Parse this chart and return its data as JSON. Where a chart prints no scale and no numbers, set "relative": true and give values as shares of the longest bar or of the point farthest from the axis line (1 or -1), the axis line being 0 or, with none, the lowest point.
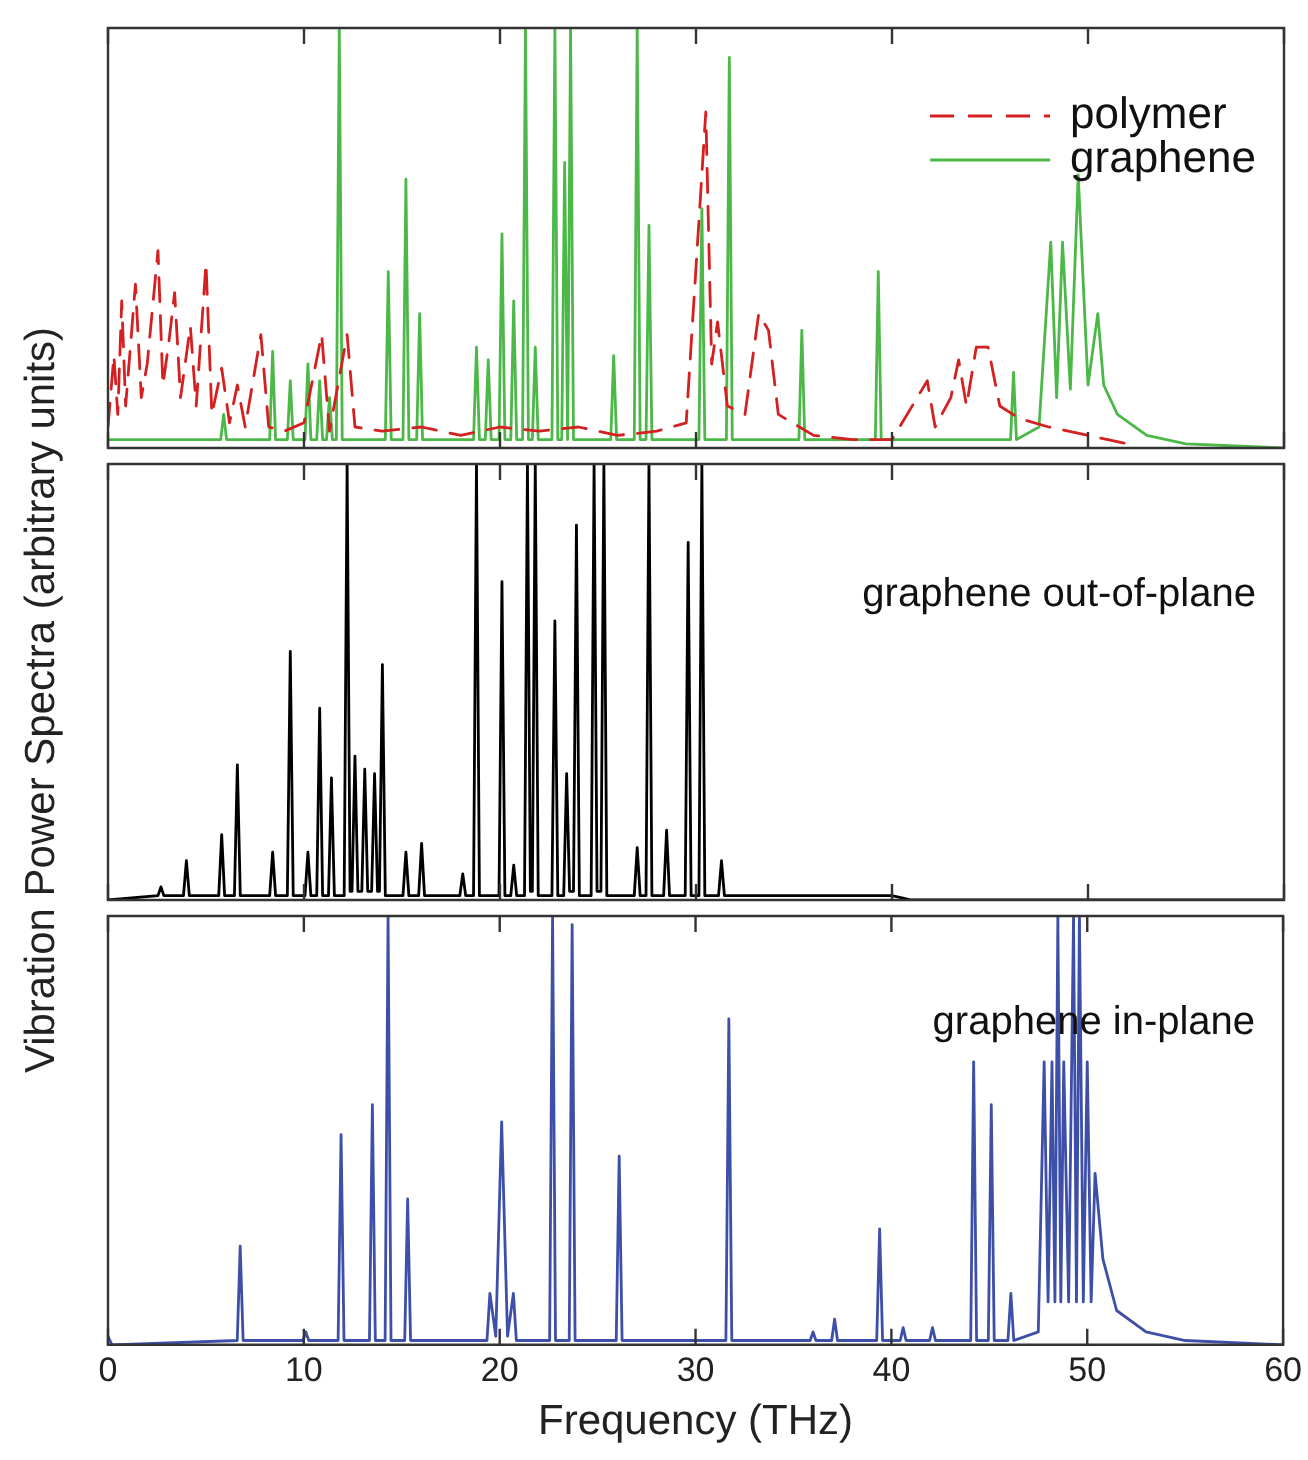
{
  "chart_data": [
    {
      "type": "line",
      "relative": true,
      "xlim": [
        0,
        60
      ],
      "xticks": [
        0,
        10,
        20,
        30,
        40,
        50,
        60
      ],
      "tick_labels": false,
      "legend": "top right",
      "series": [
        {
          "name": "polymer",
          "color": "#d42020",
          "line_style": "dashed",
          "x": [
            0,
            0.3,
            0.5,
            0.7,
            0.9,
            1.4,
            1.7,
            2.0,
            2.55,
            2.8,
            3.1,
            3.4,
            3.7,
            4.2,
            4.5,
            5.0,
            5.3,
            5.8,
            6.2,
            6.6,
            7.0,
            7.8,
            8.2,
            9,
            10,
            10.9,
            11.3,
            12.2,
            12.6,
            14,
            16,
            18,
            20,
            22,
            24,
            26,
            28,
            29.5,
            30.5,
            30.8,
            31.1,
            31.6,
            32.5,
            33.2,
            33.7,
            34.2,
            36,
            38,
            40,
            41.8,
            42.2,
            43,
            43.4,
            43.8,
            44.3,
            44.9,
            45.5,
            46.5,
            48,
            50,
            52
          ],
          "values": [
            0.05,
            0.22,
            0.08,
            0.35,
            0.1,
            0.39,
            0.12,
            0.2,
            0.47,
            0.15,
            0.25,
            0.37,
            0.12,
            0.29,
            0.1,
            0.44,
            0.08,
            0.19,
            0.06,
            0.15,
            0.05,
            0.27,
            0.05,
            0.04,
            0.06,
            0.27,
            0.04,
            0.27,
            0.05,
            0.04,
            0.05,
            0.03,
            0.05,
            0.04,
            0.05,
            0.03,
            0.04,
            0.06,
            0.8,
            0.2,
            0.3,
            0.1,
            0.08,
            0.32,
            0.28,
            0.08,
            0.03,
            0.02,
            0.02,
            0.16,
            0.05,
            0.12,
            0.21,
            0.1,
            0.24,
            0.24,
            0.1,
            0.07,
            0.05,
            0.03,
            0.01
          ]
        },
        {
          "name": "graphene",
          "color": "#4cb848",
          "line_style": "solid",
          "x": [
            0,
            5.75,
            5.9,
            6.05,
            8.25,
            8.4,
            8.55,
            9.15,
            9.3,
            9.45,
            10.05,
            10.2,
            10.35,
            10.65,
            10.8,
            10.95,
            11.15,
            11.3,
            11.45,
            11.65,
            11.8,
            11.95,
            14.15,
            14.3,
            14.45,
            15.05,
            15.2,
            15.35,
            15.75,
            15.9,
            16.05,
            18.65,
            18.8,
            18.95,
            19.25,
            19.4,
            19.55,
            19.95,
            20.1,
            20.25,
            20.55,
            20.7,
            20.85,
            21.15,
            21.3,
            21.45,
            21.65,
            21.8,
            21.95,
            22.65,
            22.8,
            22.95,
            23.15,
            23.3,
            23.45,
            23.6,
            23.75,
            25.65,
            25.8,
            25.95,
            26.85,
            27.0,
            27.15,
            27.45,
            27.6,
            27.75,
            30.15,
            30.3,
            30.45,
            31.55,
            31.7,
            31.85,
            35.25,
            35.4,
            35.55,
            39.15,
            39.3,
            39.45,
            46.05,
            46.2,
            46.35,
            47.5,
            48.1,
            48.4,
            48.7,
            49.1,
            49.5,
            50.0,
            50.5,
            50.8,
            51.5,
            53,
            55,
            60
          ],
          "values": [
            0.02,
            0.02,
            0.08,
            0.02,
            0.02,
            0.23,
            0.02,
            0.02,
            0.16,
            0.02,
            0.02,
            0.2,
            0.02,
            0.02,
            0.16,
            0.02,
            0.02,
            0.12,
            0.02,
            0.02,
            1,
            0.02,
            0.02,
            0.42,
            0.02,
            0.02,
            0.64,
            0.02,
            0.02,
            0.32,
            0.02,
            0.02,
            0.24,
            0.02,
            0.02,
            0.21,
            0.02,
            0.02,
            0.51,
            0.02,
            0.02,
            0.35,
            0.02,
            0.02,
            1,
            0.02,
            0.02,
            0.24,
            0.02,
            0.02,
            1,
            0.02,
            0.02,
            0.68,
            0.02,
            1,
            0.02,
            0.02,
            0.22,
            0.02,
            0.02,
            1,
            0.02,
            0.02,
            0.53,
            0.02,
            0.02,
            0.57,
            0.02,
            0.02,
            0.93,
            0.02,
            0.02,
            0.28,
            0.02,
            0.02,
            0.42,
            0.02,
            0.02,
            0.18,
            0.02,
            0.05,
            0.49,
            0.12,
            0.49,
            0.14,
            0.65,
            0.15,
            0.32,
            0.15,
            0.08,
            0.03,
            0.01,
            0
          ]
        }
      ]
    },
    {
      "type": "line",
      "relative": true,
      "xlim": [
        0,
        60
      ],
      "xticks": [
        0,
        10,
        20,
        30,
        40,
        50,
        60
      ],
      "tick_labels": false,
      "ylabel": "Vibration Power Spectra (arbitrary units)",
      "series": [
        {
          "name": "graphene out-of-plane",
          "color": "#000000",
          "x": [
            0,
            2.55,
            2.7,
            2.85,
            3.85,
            4.0,
            4.15,
            5.65,
            5.8,
            5.95,
            6.45,
            6.6,
            6.75,
            8.25,
            8.4,
            8.55,
            9.15,
            9.3,
            9.45,
            10.05,
            10.2,
            10.35,
            10.65,
            10.8,
            10.95,
            11.25,
            11.4,
            11.55,
            12.05,
            12.2,
            12.35,
            12.45,
            12.6,
            12.75,
            12.95,
            13.1,
            13.25,
            13.45,
            13.6,
            13.75,
            13.85,
            14.0,
            14.15,
            15.05,
            15.2,
            15.35,
            15.85,
            16.0,
            16.15,
            17.95,
            18.1,
            18.25,
            18.65,
            18.8,
            18.95,
            19.95,
            20.1,
            20.25,
            20.55,
            20.7,
            20.85,
            21.25,
            21.4,
            21.55,
            21.65,
            21.8,
            21.95,
            22.65,
            22.8,
            22.95,
            23.25,
            23.4,
            23.55,
            23.75,
            23.9,
            24.05,
            24.65,
            24.8,
            24.95,
            25.15,
            25.3,
            25.45,
            26.85,
            27.0,
            27.15,
            27.45,
            27.6,
            27.75,
            28.35,
            28.5,
            28.65,
            29.45,
            29.6,
            29.75,
            30.15,
            30.3,
            30.45,
            31.15,
            31.3,
            31.45,
            40,
            41,
            60
          ],
          "values": [
            0,
            0.01,
            0.03,
            0.01,
            0.01,
            0.09,
            0.01,
            0.01,
            0.15,
            0.01,
            0.01,
            0.31,
            0.01,
            0.01,
            0.11,
            0.01,
            0.01,
            0.57,
            0.01,
            0.01,
            0.11,
            0.01,
            0.01,
            0.44,
            0.01,
            0.01,
            0.28,
            0.01,
            0.01,
            1,
            0.02,
            0.02,
            0.33,
            0.02,
            0.02,
            0.3,
            0.02,
            0.02,
            0.29,
            0.02,
            0.02,
            0.54,
            0.01,
            0.01,
            0.11,
            0.01,
            0.01,
            0.13,
            0.01,
            0.01,
            0.06,
            0.01,
            0.01,
            1,
            0.01,
            0.01,
            0.73,
            0.01,
            0.01,
            0.08,
            0.01,
            0.01,
            1,
            0.02,
            0.02,
            1,
            0.01,
            0.01,
            0.64,
            0.01,
            0.01,
            0.29,
            0.02,
            0.02,
            0.86,
            0.01,
            0.01,
            1,
            0.02,
            0.02,
            1,
            0.01,
            0.01,
            0.12,
            0.01,
            0.01,
            1,
            0.01,
            0.01,
            0.16,
            0.01,
            0.01,
            0.82,
            0.01,
            0.01,
            1,
            0.01,
            0.01,
            0.09,
            0.01,
            0.01,
            0,
            0
          ]
        }
      ]
    },
    {
      "type": "line",
      "relative": true,
      "xlim": [
        0,
        60
      ],
      "xticks": [
        0,
        10,
        20,
        30,
        40,
        50,
        60
      ],
      "tick_labels": "x",
      "xlabel": "Frequency (THz)",
      "series": [
        {
          "name": "graphene in-plane",
          "color": "#3d4fa8",
          "x": [
            0,
            0.2,
            6.6,
            6.75,
            6.9,
            9.95,
            10.1,
            10.25,
            11.75,
            11.9,
            12.05,
            13.35,
            13.5,
            13.65,
            14.15,
            14.3,
            14.45,
            15.15,
            15.3,
            15.45,
            19.35,
            19.5,
            19.8,
            20.1,
            20.4,
            20.7,
            20.85,
            22.55,
            22.7,
            22.85,
            23.55,
            23.7,
            23.85,
            25.95,
            26.1,
            26.25,
            31.55,
            31.7,
            31.85,
            35.85,
            36.0,
            36.15,
            36.95,
            37.1,
            37.25,
            39.25,
            39.4,
            39.55,
            40.45,
            40.6,
            40.75,
            41.95,
            42.1,
            42.25,
            44.05,
            44.2,
            44.35,
            44.95,
            45.1,
            45.25,
            45.95,
            46.1,
            46.25,
            47.5,
            47.8,
            48.0,
            48.2,
            48.35,
            48.5,
            48.65,
            48.8,
            49.05,
            49.3,
            49.45,
            49.6,
            49.8,
            50.0,
            50.2,
            50.4,
            50.8,
            51.5,
            53,
            55,
            60
          ],
          "values": [
            0.02,
            0,
            0.01,
            0.23,
            0.01,
            0.01,
            0.03,
            0.01,
            0.01,
            0.49,
            0.01,
            0.01,
            0.56,
            0.01,
            0.01,
            1,
            0.01,
            0.01,
            0.34,
            0.01,
            0.01,
            0.12,
            0.02,
            0.52,
            0.02,
            0.12,
            0.01,
            0.01,
            1,
            0.01,
            0.01,
            0.98,
            0.01,
            0.01,
            0.44,
            0.01,
            0.01,
            0.76,
            0.01,
            0.01,
            0.03,
            0.01,
            0.01,
            0.06,
            0.01,
            0.01,
            0.27,
            0.01,
            0.01,
            0.04,
            0.01,
            0.01,
            0.04,
            0.01,
            0.01,
            0.66,
            0.01,
            0.01,
            0.56,
            0.01,
            0.01,
            0.12,
            0.01,
            0.03,
            0.66,
            0.1,
            0.66,
            0.1,
            1,
            0.1,
            0.66,
            0.1,
            1,
            0.1,
            1,
            0.1,
            0.66,
            0.1,
            0.4,
            0.2,
            0.08,
            0.03,
            0.01,
            0
          ]
        }
      ]
    }
  ]
}
